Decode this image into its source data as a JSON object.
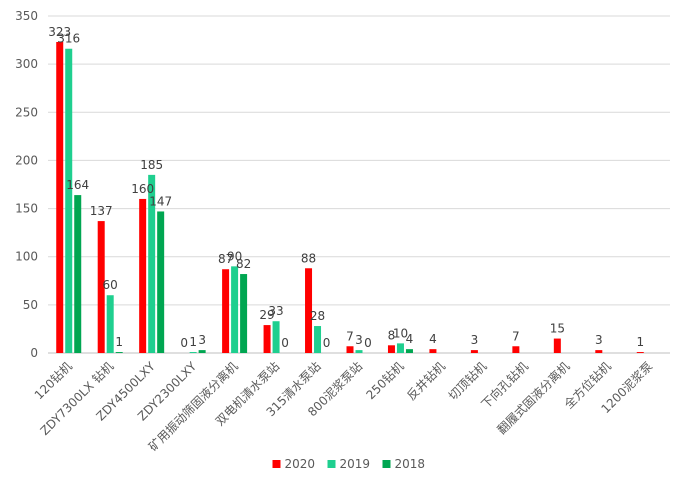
{
  "chart_data": {
    "type": "bar",
    "title": "",
    "xlabel": "",
    "ylabel": "",
    "ylim": [
      0,
      350
    ],
    "yticks": [
      0,
      50,
      100,
      150,
      200,
      250,
      300,
      350
    ],
    "grid": true,
    "legend_position": "bottom",
    "categories": [
      "120钻机",
      "ZDY7300LX 钻机",
      "ZDY4500LXY",
      "ZDY2300LXY",
      "矿用振动筛固液分离机",
      "双电机清水泵站",
      "315清水泵站",
      "800泥浆泵站",
      "250钻机",
      "反井钻机",
      "切顶钻机",
      "下向孔钻机",
      "翻履式固液分离机",
      "全方位钻机",
      "1200泥浆泵"
    ],
    "series": [
      {
        "name": "2020",
        "color": "#ff0000",
        "values": [
          323,
          137,
          160,
          0,
          87,
          29,
          88,
          7,
          8,
          4,
          3,
          7,
          15,
          3,
          1
        ]
      },
      {
        "name": "2019",
        "color": "#1fcf8f",
        "values": [
          316,
          60,
          185,
          1,
          90,
          33,
          28,
          3,
          10,
          null,
          null,
          null,
          null,
          null,
          null
        ]
      },
      {
        "name": "2018",
        "color": "#00a651",
        "values": [
          164,
          1,
          147,
          3,
          82,
          0,
          0,
          0,
          4,
          null,
          null,
          null,
          null,
          null,
          null
        ]
      }
    ]
  }
}
